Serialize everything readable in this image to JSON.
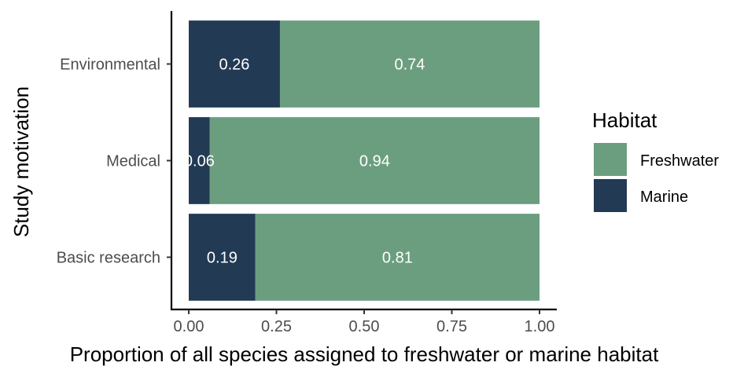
{
  "chart_data": {
    "type": "bar",
    "orientation": "horizontal",
    "stacked": true,
    "categories": [
      "Basic research",
      "Medical",
      "Environmental"
    ],
    "series": [
      {
        "name": "Marine",
        "values": [
          0.19,
          0.06,
          0.26
        ],
        "labels": [
          "0.19",
          "0.06",
          "0.26"
        ],
        "color": "#223a54"
      },
      {
        "name": "Freshwater",
        "values": [
          0.81,
          0.94,
          0.74
        ],
        "labels": [
          "0.81",
          "0.94",
          "0.74"
        ],
        "color": "#6b9e7f"
      }
    ],
    "xlabel": "Proportion of all species assigned to freshwater or marine habitat",
    "ylabel": "Study motivation",
    "xlim": [
      0,
      1
    ],
    "xticks": [
      0,
      0.25,
      0.5,
      0.75,
      1
    ],
    "xtick_labels": [
      "0.00",
      "0.25",
      "0.50",
      "0.75",
      "1.00"
    ],
    "grid": false,
    "legend": {
      "title": "Habitat",
      "position": "right",
      "items": [
        {
          "label": "Freshwater",
          "color": "#6b9e7f"
        },
        {
          "label": "Marine",
          "color": "#223a54"
        }
      ]
    }
  }
}
